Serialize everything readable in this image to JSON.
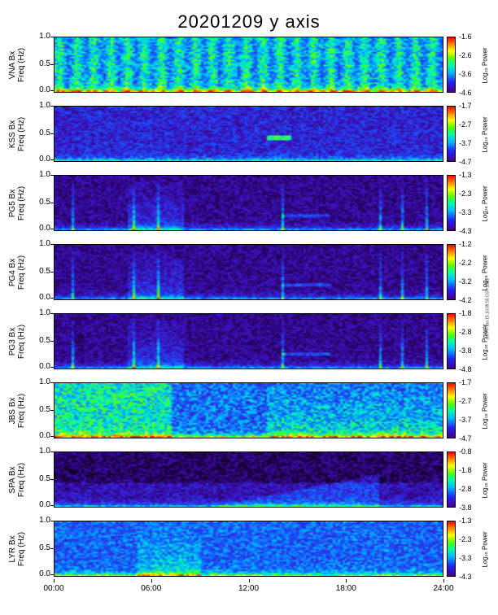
{
  "title": "20201209 y axis",
  "credit": "anl Fri Jan 15 10:09:55 GST 2021",
  "x_ticks": [
    "00:00",
    "06:00",
    "12:00",
    "18:00",
    "24:00"
  ],
  "colorbar_label": "Log₁₀ Power",
  "chart_data": [
    {
      "type": "heatmap",
      "station": "VNA",
      "ylabel_line1": "VNA Bx",
      "ylabel_line2": "Freq (Hz)",
      "yticks": [
        "1.0",
        "0.5",
        "0.0"
      ],
      "ylim": [
        0,
        1.05
      ],
      "xlim": [
        0,
        24
      ],
      "colorbar_ticks": [
        "-1.6",
        "-2.6",
        "-3.6",
        "-4.6"
      ],
      "clim": [
        -4.6,
        -1.6
      ],
      "profile": "vna"
    },
    {
      "type": "heatmap",
      "station": "KSS",
      "ylabel_line1": "KSS Bx",
      "ylabel_line2": "Freq (Hz)",
      "yticks": [
        "1.0",
        "0.5",
        "0.0"
      ],
      "ylim": [
        0,
        1.05
      ],
      "xlim": [
        0,
        24
      ],
      "colorbar_ticks": [
        "-1.7",
        "-2.7",
        "-3.7",
        "-4.7"
      ],
      "clim": [
        -4.7,
        -1.7
      ],
      "profile": "kss"
    },
    {
      "type": "heatmap",
      "station": "PG5",
      "ylabel_line1": "PG5 Bx",
      "ylabel_line2": "Freq (Hz)",
      "yticks": [
        "1.0",
        "0.5",
        "0.0"
      ],
      "ylim": [
        0,
        1.05
      ],
      "xlim": [
        0,
        24
      ],
      "colorbar_ticks": [
        "-1.3",
        "-2.3",
        "-3.3",
        "-4.3"
      ],
      "clim": [
        -4.3,
        -1.3
      ],
      "profile": "pg5"
    },
    {
      "type": "heatmap",
      "station": "PG4",
      "ylabel_line1": "PG4 Bx",
      "ylabel_line2": "Freq (Hz)",
      "yticks": [
        "1.0",
        "0.5",
        "0.0"
      ],
      "ylim": [
        0,
        1.05
      ],
      "xlim": [
        0,
        24
      ],
      "colorbar_ticks": [
        "-1.2",
        "-2.2",
        "-3.2",
        "-4.2"
      ],
      "clim": [
        -4.2,
        -1.2
      ],
      "profile": "pg4"
    },
    {
      "type": "heatmap",
      "station": "PG3",
      "ylabel_line1": "PG3 Bx",
      "ylabel_line2": "Freq (Hz)",
      "yticks": [
        "1.0",
        "0.5",
        "0.0"
      ],
      "ylim": [
        0,
        1.05
      ],
      "xlim": [
        0,
        24
      ],
      "colorbar_ticks": [
        "-1.8",
        "-2.8",
        "-3.8",
        "-4.8"
      ],
      "clim": [
        -4.8,
        -1.8
      ],
      "profile": "pg3"
    },
    {
      "type": "heatmap",
      "station": "JBS",
      "ylabel_line1": "JBS Bx",
      "ylabel_line2": "Freq (Hz)",
      "yticks": [
        "1.0",
        "0.5",
        "0.0"
      ],
      "ylim": [
        0,
        1.05
      ],
      "xlim": [
        0,
        24
      ],
      "colorbar_ticks": [
        "-1.7",
        "-2.7",
        "-3.7",
        "-4.7"
      ],
      "clim": [
        -4.7,
        -1.7
      ],
      "profile": "jbs"
    },
    {
      "type": "heatmap",
      "station": "SPA",
      "ylabel_line1": "SPA Bx",
      "ylabel_line2": "Freq (Hz)",
      "yticks": [
        "1.0",
        "0.5",
        "0.0"
      ],
      "ylim": [
        0,
        1.05
      ],
      "xlim": [
        0,
        24
      ],
      "colorbar_ticks": [
        "-0.8",
        "-1.8",
        "-2.8",
        "-3.8"
      ],
      "clim": [
        -3.8,
        -0.8
      ],
      "profile": "spa"
    },
    {
      "type": "heatmap",
      "station": "LYR",
      "ylabel_line1": "LYR Bx",
      "ylabel_line2": "Freq (Hz)",
      "yticks": [
        "1.0",
        "0.5",
        "0.0"
      ],
      "ylim": [
        0,
        1.05
      ],
      "xlim": [
        0,
        24
      ],
      "colorbar_ticks": [
        "-1.3",
        "-2.3",
        "-3.3",
        "-4.3"
      ],
      "clim": [
        -4.3,
        -1.3
      ],
      "profile": "lyr"
    }
  ]
}
